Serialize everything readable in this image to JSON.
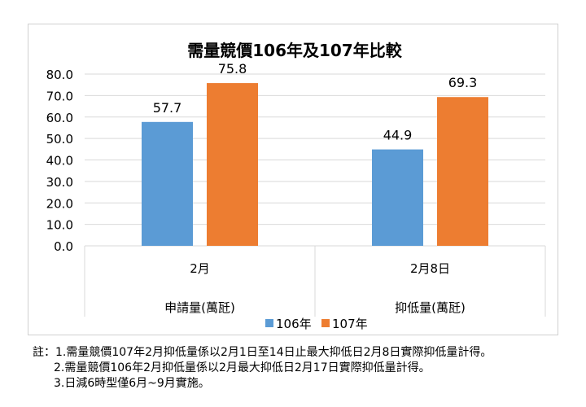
{
  "chart_data": {
    "type": "bar",
    "title": "需量競價106年及107年比較",
    "categories": [
      "2月",
      "2月8日"
    ],
    "group_labels": [
      "申請量(萬瓩)",
      "抑低量(萬瓩)"
    ],
    "series": [
      {
        "name": "106年",
        "values": [
          57.7,
          44.9
        ],
        "color": "#5b9bd5"
      },
      {
        "name": "107年",
        "values": [
          75.8,
          69.3
        ],
        "color": "#ed7d31"
      }
    ],
    "value_labels": [
      [
        "57.7",
        "44.9"
      ],
      [
        "75.8",
        "69.3"
      ]
    ],
    "ylim": [
      0,
      80
    ],
    "yticks": [
      "0.0",
      "10.0",
      "20.0",
      "30.0",
      "40.0",
      "50.0",
      "60.0",
      "70.0",
      "80.0"
    ],
    "grid": true,
    "legend_position": "bottom",
    "xlabel": "",
    "ylabel": ""
  },
  "notes": {
    "prefix": "註：",
    "items": [
      "1.需量競價107年2月抑低量係以2月1日至14日止最大抑低日2月8日實際抑低量計得。",
      "2.需量競價106年2月抑低量係以2月最大抑低日2月17日實際抑低量計得。",
      "3.日減6時型僅6月~9月實施。"
    ]
  }
}
